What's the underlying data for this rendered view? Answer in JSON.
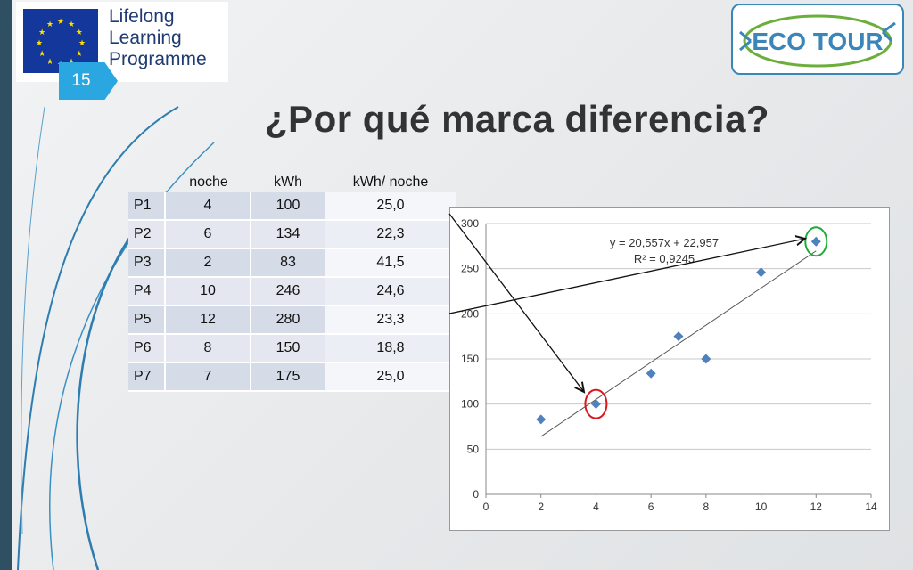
{
  "header": {
    "llp_logo": [
      "Lifelong",
      "Learning",
      "Programme"
    ],
    "slide_number": "15",
    "eco_logo_text": "ECO TOUR",
    "title": "¿Por qué marca diferencia?"
  },
  "table": {
    "headers": [
      "",
      "noche",
      "kWh",
      "kWh/ noche"
    ],
    "rows": [
      [
        "P1",
        "4",
        "100",
        "25,0"
      ],
      [
        "P2",
        "6",
        "134",
        "22,3"
      ],
      [
        "P3",
        "2",
        "83",
        "41,5"
      ],
      [
        "P4",
        "10",
        "246",
        "24,6"
      ],
      [
        "P5",
        "12",
        "280",
        "23,3"
      ],
      [
        "P6",
        "8",
        "150",
        "18,8"
      ],
      [
        "P7",
        "7",
        "175",
        "25,0"
      ]
    ],
    "highlight_colors": {
      "P1": "#ff0000",
      "P5": "#14a13a"
    }
  },
  "colors": {
    "accent": "#2aa7e0",
    "marker": "#4f81bd",
    "highlight_circle_red": "#d7191c",
    "highlight_circle_green": "#1faa3a"
  },
  "chart_data": {
    "type": "scatter",
    "x": [
      4,
      6,
      2,
      10,
      12,
      8,
      7
    ],
    "y": [
      100,
      134,
      83,
      246,
      280,
      150,
      175
    ],
    "xlim": [
      0,
      14
    ],
    "ylim": [
      0,
      300
    ],
    "xticks": [
      0,
      2,
      4,
      6,
      8,
      10,
      12,
      14
    ],
    "yticks": [
      0,
      50,
      100,
      150,
      200,
      250,
      300
    ],
    "trendline": {
      "slope": 20.557,
      "intercept": 22.957,
      "x_range": [
        2,
        12
      ]
    },
    "annotations": [
      "y = 20,557x + 22,957",
      "R² = 0,9245"
    ],
    "grid": "horizontal",
    "highlighted_points": [
      {
        "x": 4,
        "y": 100,
        "color": "red"
      },
      {
        "x": 12,
        "y": 280,
        "color": "green"
      }
    ]
  }
}
